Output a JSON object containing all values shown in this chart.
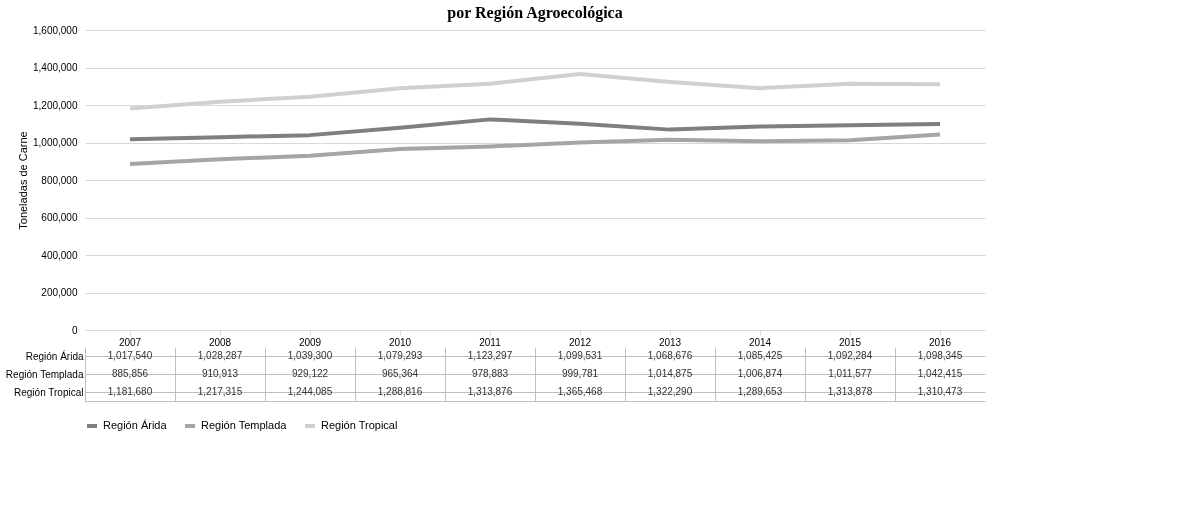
{
  "chart_data": {
    "type": "line",
    "title": "por Región Agroecológica",
    "ylabel": "Toneladas de Carne",
    "categories": [
      "2007",
      "2008",
      "2009",
      "2010",
      "2011",
      "2012",
      "2013",
      "2014",
      "2015",
      "2016"
    ],
    "series": [
      {
        "name": "Región Árida",
        "color": "#7f7f7f",
        "values": [
          1017540,
          1028287,
          1039300,
          1079293,
          1123297,
          1099531,
          1068676,
          1085425,
          1092284,
          1098345
        ],
        "value_labels": [
          "1,017,540",
          "1,028,287",
          "1,039,300",
          "1,079,293",
          "1,123,297",
          "1,099,531",
          "1,068,676",
          "1,085,425",
          "1,092,284",
          "1,098,345"
        ]
      },
      {
        "name": "Región Templada",
        "color": "#a5a5a5",
        "values": [
          885856,
          910913,
          929122,
          965364,
          978883,
          999781,
          1014875,
          1006874,
          1011577,
          1042415
        ],
        "value_labels": [
          "885,856",
          "910,913",
          "929,122",
          "965,364",
          "978,883",
          "999,781",
          "1,014,875",
          "1,006,874",
          "1,011,577",
          "1,042,415"
        ]
      },
      {
        "name": "Región Tropical",
        "color": "#d0d0d0",
        "values": [
          1181680,
          1217315,
          1244085,
          1288816,
          1313876,
          1365468,
          1322290,
          1289653,
          1313878,
          1310473
        ],
        "value_labels": [
          "1,181,680",
          "1,217,315",
          "1,244,085",
          "1,288,816",
          "1,313,876",
          "1,365,468",
          "1,322,290",
          "1,289,653",
          "1,313,878",
          "1,310,473"
        ]
      }
    ],
    "ylim": [
      0,
      1600000
    ],
    "yticks": [
      0,
      {
        "value": 200000,
        "label": "200,000"
      },
      {
        "value": 400000,
        "label": "400,000"
      },
      {
        "value": 600000,
        "label": "600,000"
      },
      {
        "value": 800000,
        "label": "800,000"
      },
      {
        "value": 1000000,
        "label": "1,000,000"
      },
      {
        "value": 1200000,
        "label": "1,200,000"
      },
      {
        "value": 1400000,
        "label": "1,400,000"
      },
      {
        "value": 1600000,
        "label": "1,600,000"
      }
    ],
    "grid": "y",
    "legend": "bottom",
    "marker": "none",
    "line_style": "solid"
  }
}
